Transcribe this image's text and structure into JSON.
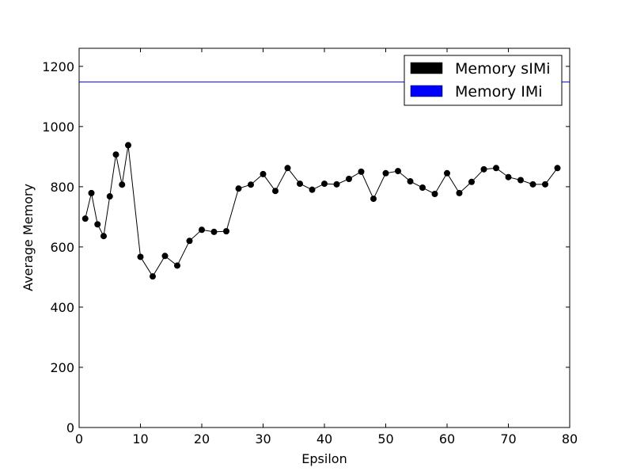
{
  "chart_data": {
    "type": "line",
    "title": "",
    "xlabel": "Epsilon",
    "ylabel": "Average Memory",
    "xlim": [
      0,
      80
    ],
    "ylim": [
      0,
      1260
    ],
    "x_ticks": [
      0,
      10,
      20,
      30,
      40,
      50,
      60,
      70,
      80
    ],
    "y_ticks": [
      0,
      200,
      400,
      600,
      800,
      1000,
      1200
    ],
    "grid": false,
    "legend_position": "top-right",
    "series": [
      {
        "name": "Memory sIMi",
        "color": "#000000",
        "marker": "circle",
        "x": [
          1,
          2,
          3,
          4,
          5,
          6,
          7,
          8,
          10,
          12,
          14,
          16,
          18,
          20,
          22,
          24,
          26,
          28,
          30,
          32,
          34,
          36,
          38,
          40,
          42,
          44,
          46,
          48,
          50,
          52,
          54,
          56,
          58,
          60,
          62,
          64,
          66,
          68,
          70,
          72,
          74,
          76,
          78
        ],
        "y": [
          694,
          779,
          675,
          636,
          768,
          907,
          807,
          938,
          567,
          502,
          570,
          538,
          620,
          657,
          650,
          652,
          794,
          807,
          842,
          786,
          862,
          810,
          790,
          810,
          808,
          826,
          850,
          760,
          845,
          852,
          818,
          797,
          776,
          845,
          779,
          816,
          858,
          862,
          832,
          822,
          808,
          808,
          862
        ]
      },
      {
        "name": "Memory IMi",
        "color": "#0000ff",
        "marker": "none",
        "y_constant": 1148
      }
    ]
  }
}
